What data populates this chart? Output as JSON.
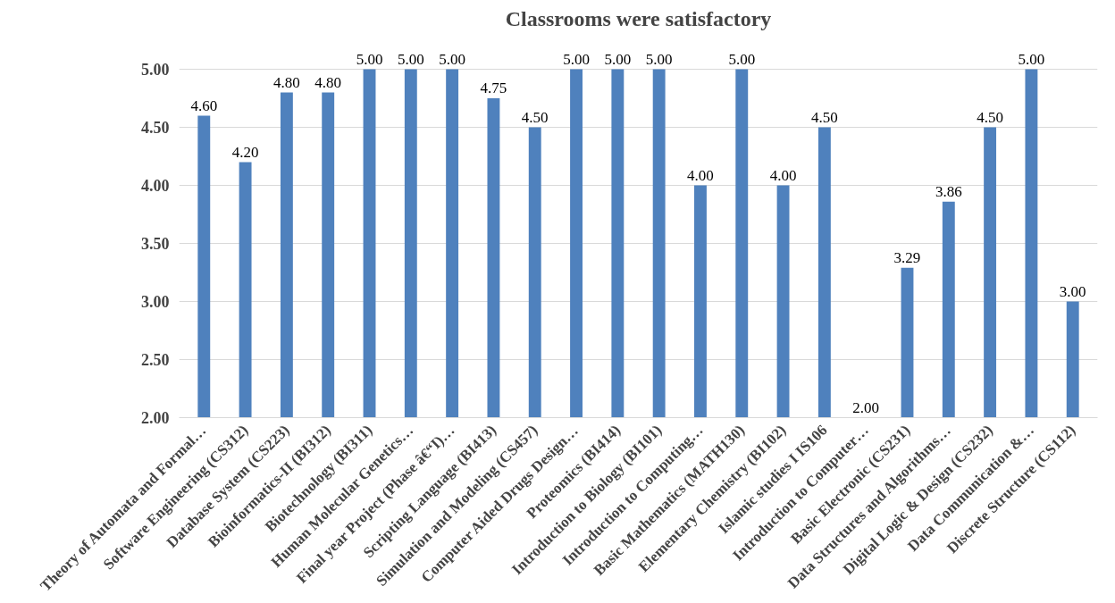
{
  "chart_data": {
    "type": "bar",
    "title": "Classrooms were satisfactory",
    "categories": [
      "Theory of Automata and Formal…",
      "Software Engineering (CS312)",
      "Database System (CS223)",
      "Bioinformatics-II (BI312)",
      "Biotechnology (BI311)",
      "Human Molecular Genetics…",
      "Final year Project (Phase â€“I)…",
      "Scripting Language (BI413)",
      "Simulation and Modeling (CS457)",
      "Computer Aided Drugs Design…",
      "Proteomics (BI414)",
      "Introduction to Biology (BI101)",
      "Introduction to Computing…",
      "Basic Mathematics (MATH130)",
      "Elementary Chemistry (BI102)",
      "Islamic studies I IS106",
      "Introduction to Computer…",
      "Basic Electronic (CS231)",
      "Data Structures and Algorithms…",
      "Digital Logic & Design (CS232)",
      "Data Communication &…",
      "Discrete Structure (CS112)"
    ],
    "values": [
      4.6,
      4.2,
      4.8,
      4.8,
      5.0,
      5.0,
      5.0,
      4.75,
      4.5,
      5.0,
      5.0,
      5.0,
      4.0,
      5.0,
      4.0,
      4.5,
      2.0,
      3.29,
      3.86,
      4.5,
      5.0,
      3.0
    ],
    "value_labels": [
      "4.60",
      "4.20",
      "4.80",
      "4.80",
      "5.00",
      "5.00",
      "5.00",
      "4.75",
      "4.50",
      "5.00",
      "5.00",
      "5.00",
      "4.00",
      "5.00",
      "4.00",
      "4.50",
      "2.00",
      "3.29",
      "3.86",
      "4.50",
      "5.00",
      "3.00"
    ],
    "color": "#4f81bd",
    "ylim": [
      2,
      5
    ],
    "yticks": [
      {
        "value": 2,
        "label": "2.00"
      },
      {
        "value": 2.5,
        "label": "2.50"
      },
      {
        "value": 3,
        "label": "3.00"
      },
      {
        "value": 3.5,
        "label": "3.50"
      },
      {
        "value": 4,
        "label": "4.00"
      },
      {
        "value": 4.5,
        "label": "4.50"
      },
      {
        "value": 5,
        "label": "5.00"
      }
    ],
    "grid": "y"
  }
}
